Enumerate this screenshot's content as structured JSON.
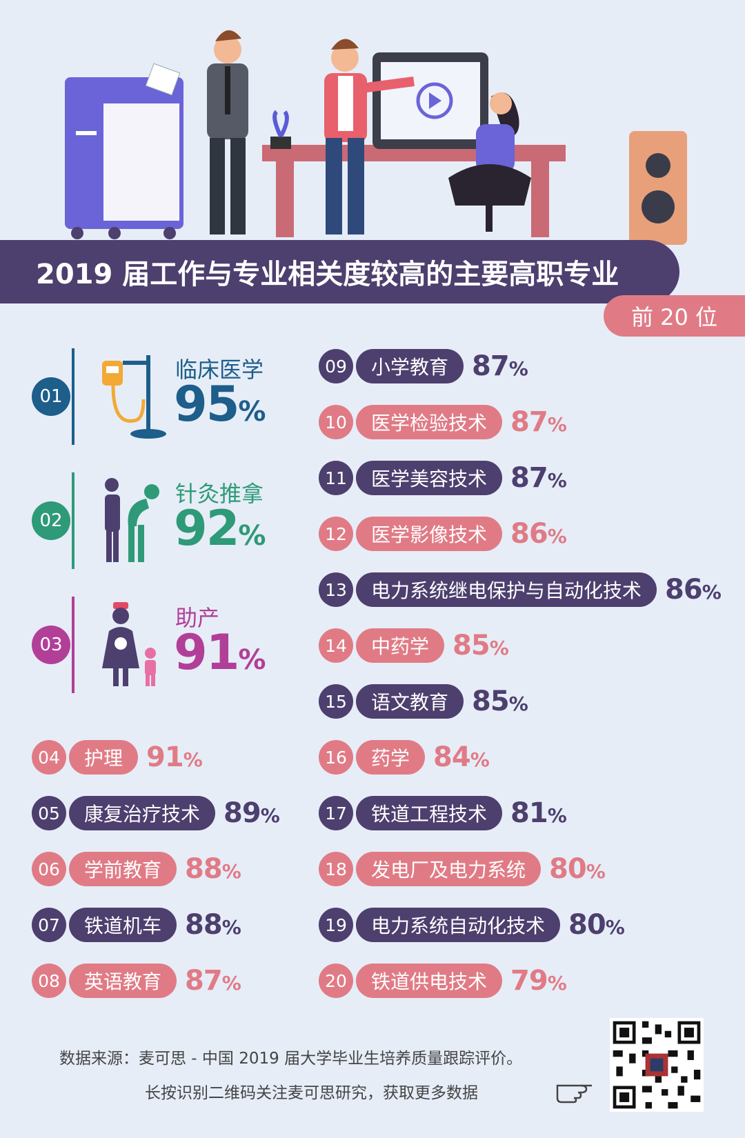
{
  "title": "2019 届工作与专业相关度较高的主要高职专业",
  "subtitle": "前 20 位",
  "colors": {
    "purple": "#4d3f6e",
    "pink": "#e07b86",
    "blue": "#1d5e8a",
    "green": "#2e9a77",
    "magenta": "#b13f98"
  },
  "top3": [
    {
      "rank": "01",
      "name": "临床医学",
      "value": "95",
      "unit": "%",
      "color": "#1d5e8a",
      "icon": "iv-drip-icon"
    },
    {
      "rank": "02",
      "name": "针灸推拿",
      "value": "92",
      "unit": "%",
      "color": "#2e9a77",
      "icon": "massage-icon"
    },
    {
      "rank": "03",
      "name": "助产",
      "value": "91",
      "unit": "%",
      "color": "#b13f98",
      "icon": "nurse-child-icon"
    }
  ],
  "rows": [
    {
      "rank": "04",
      "name": "护理",
      "value": "91",
      "unit": "%",
      "color": "pink"
    },
    {
      "rank": "05",
      "name": "康复治疗技术",
      "value": "89",
      "unit": "%",
      "color": "purple"
    },
    {
      "rank": "06",
      "name": "学前教育",
      "value": "88",
      "unit": "%",
      "color": "pink"
    },
    {
      "rank": "07",
      "name": "铁道机车",
      "value": "88",
      "unit": "%",
      "color": "purple"
    },
    {
      "rank": "08",
      "name": "英语教育",
      "value": "87",
      "unit": "%",
      "color": "pink"
    },
    {
      "rank": "09",
      "name": "小学教育",
      "value": "87",
      "unit": "%",
      "color": "purple"
    },
    {
      "rank": "10",
      "name": "医学检验技术",
      "value": "87",
      "unit": "%",
      "color": "pink"
    },
    {
      "rank": "11",
      "name": "医学美容技术",
      "value": "87",
      "unit": "%",
      "color": "purple"
    },
    {
      "rank": "12",
      "name": "医学影像技术",
      "value": "86",
      "unit": "%",
      "color": "pink"
    },
    {
      "rank": "13",
      "name": "电力系统继电保护与自动化技术",
      "value": "86",
      "unit": "%",
      "color": "purple"
    },
    {
      "rank": "14",
      "name": "中药学",
      "value": "85",
      "unit": "%",
      "color": "pink"
    },
    {
      "rank": "15",
      "name": "语文教育",
      "value": "85",
      "unit": "%",
      "color": "purple"
    },
    {
      "rank": "16",
      "name": "药学",
      "value": "84",
      "unit": "%",
      "color": "pink"
    },
    {
      "rank": "17",
      "name": "铁道工程技术",
      "value": "81",
      "unit": "%",
      "color": "purple"
    },
    {
      "rank": "18",
      "name": "发电厂及电力系统",
      "value": "80",
      "unit": "%",
      "color": "pink"
    },
    {
      "rank": "19",
      "name": "电力系统自动化技术",
      "value": "80",
      "unit": "%",
      "color": "purple"
    },
    {
      "rank": "20",
      "name": "铁道供电技术",
      "value": "79",
      "unit": "%",
      "color": "pink"
    }
  ],
  "chart_data": {
    "type": "bar",
    "title": "2019 届工作与专业相关度较高的主要高职专业",
    "subtitle": "前 20 位",
    "categories": [
      "临床医学",
      "针灸推拿",
      "助产",
      "护理",
      "康复治疗技术",
      "学前教育",
      "铁道机车",
      "英语教育",
      "小学教育",
      "医学检验技术",
      "医学美容技术",
      "医学影像技术",
      "电力系统继电保护与自动化技术",
      "中药学",
      "语文教育",
      "药学",
      "铁道工程技术",
      "发电厂及电力系统",
      "电力系统自动化技术",
      "铁道供电技术"
    ],
    "values": [
      95,
      92,
      91,
      91,
      89,
      88,
      88,
      87,
      87,
      87,
      87,
      86,
      86,
      85,
      85,
      84,
      81,
      80,
      80,
      79
    ],
    "unit": "%"
  },
  "footer": {
    "source": "数据来源：麦可思 - 中国 2019 届大学毕业生培养质量跟踪评价。",
    "cta": "长按识别二维码关注麦可思研究，获取更多数据"
  }
}
